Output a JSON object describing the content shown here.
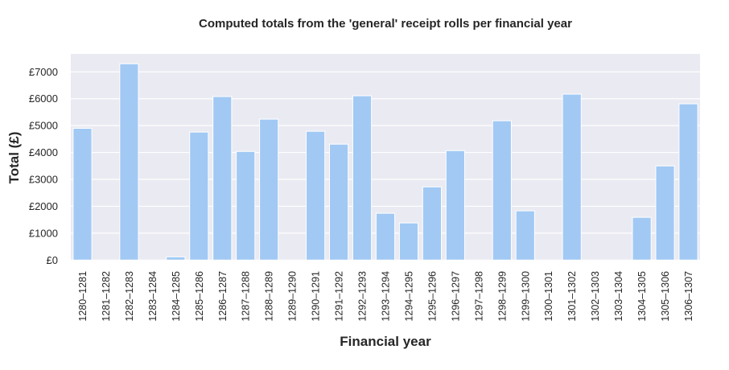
{
  "chart_data": {
    "type": "bar",
    "title": "Computed totals from the 'general' receipt rolls per financial year",
    "xlabel": "Financial year",
    "ylabel": "Total (£)",
    "ylim": [
      0,
      7700
    ],
    "yticks": [
      0,
      1000,
      2000,
      3000,
      4000,
      5000,
      6000,
      7000
    ],
    "ytick_labels": [
      "£0",
      "£1000",
      "£2000",
      "£3000",
      "£4000",
      "£5000",
      "£6000",
      "£7000"
    ],
    "grid": true,
    "bar_color": "#a1c9f4",
    "background_color": "#eaeaf2",
    "categories": [
      "1280–1281",
      "1281–1282",
      "1282–1283",
      "1283–1284",
      "1284–1285",
      "1285–1286",
      "1286–1287",
      "1287–1288",
      "1288–1289",
      "1289–1290",
      "1290–1291",
      "1291–1292",
      "1292–1293",
      "1293–1294",
      "1294–1295",
      "1295–1296",
      "1296–1297",
      "1297–1298",
      "1298–1299",
      "1299–1300",
      "1300–1301",
      "1301–1302",
      "1302–1303",
      "1303–1304",
      "1304–1305",
      "1305–1306",
      "1306–1307"
    ],
    "values": [
      4900,
      0,
      7300,
      0,
      120,
      4760,
      6080,
      4040,
      5240,
      0,
      4790,
      4310,
      6110,
      1740,
      1380,
      2720,
      4070,
      0,
      5180,
      1830,
      0,
      6170,
      0,
      0,
      1590,
      3500,
      5810
    ]
  }
}
